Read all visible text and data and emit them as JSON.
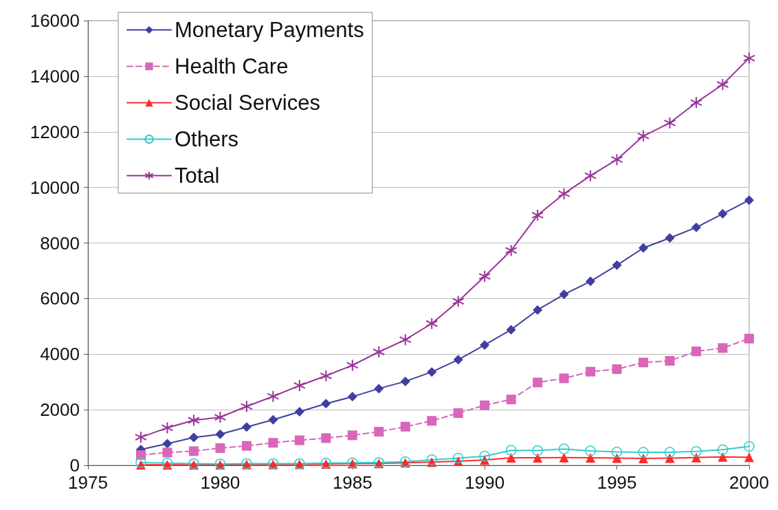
{
  "chart_data": {
    "type": "line",
    "x": [
      1977,
      1978,
      1979,
      1980,
      1981,
      1982,
      1983,
      1984,
      1985,
      1986,
      1987,
      1988,
      1989,
      1990,
      1991,
      1992,
      1993,
      1994,
      1995,
      1996,
      1997,
      1998,
      1999,
      2000
    ],
    "series": [
      {
        "name": "Monetary Payments",
        "color": "#3f3f9f",
        "marker": "diamond",
        "line_style": "solid",
        "values": [
          570,
          780,
          1000,
          1120,
          1380,
          1640,
          1930,
          2220,
          2470,
          2760,
          3020,
          3360,
          3800,
          4330,
          4880,
          5590,
          6150,
          6620,
          7200,
          7820,
          8180,
          8560,
          9050,
          9540
        ]
      },
      {
        "name": "Health Care",
        "color": "#d966b8",
        "marker": "square",
        "line_style": "dashed",
        "values": [
          370,
          460,
          510,
          620,
          700,
          810,
          900,
          980,
          1080,
          1210,
          1390,
          1600,
          1880,
          2160,
          2370,
          2980,
          3130,
          3370,
          3460,
          3700,
          3760,
          4100,
          4220,
          4560
        ]
      },
      {
        "name": "Social Services",
        "color": "#ff2a2a",
        "marker": "triangle",
        "line_style": "solid",
        "values": [
          20,
          20,
          20,
          20,
          30,
          30,
          40,
          50,
          60,
          70,
          90,
          120,
          150,
          190,
          270,
          270,
          280,
          270,
          260,
          250,
          260,
          280,
          300,
          290
        ]
      },
      {
        "name": "Others",
        "color": "#33cccc",
        "marker": "circle",
        "line_style": "solid",
        "values": [
          100,
          80,
          60,
          50,
          60,
          60,
          60,
          80,
          90,
          100,
          130,
          200,
          260,
          330,
          540,
          530,
          590,
          520,
          480,
          470,
          470,
          500,
          560,
          680
        ]
      },
      {
        "name": "Total",
        "color": "#993399",
        "marker": "cross",
        "line_style": "solid",
        "values": [
          1010,
          1350,
          1620,
          1730,
          2120,
          2480,
          2870,
          3220,
          3600,
          4080,
          4520,
          5100,
          5900,
          6800,
          7730,
          9000,
          9770,
          10420,
          11000,
          11850,
          12320,
          13050,
          13700,
          14650
        ]
      }
    ],
    "xlim": [
      1975,
      2000
    ],
    "xticks": [
      1975,
      1980,
      1985,
      1990,
      1995,
      2000
    ],
    "ylim": [
      0,
      16000
    ],
    "yticks": [
      0,
      2000,
      4000,
      6000,
      8000,
      10000,
      12000,
      14000,
      16000
    ],
    "grid": "y",
    "legend": "top left"
  }
}
